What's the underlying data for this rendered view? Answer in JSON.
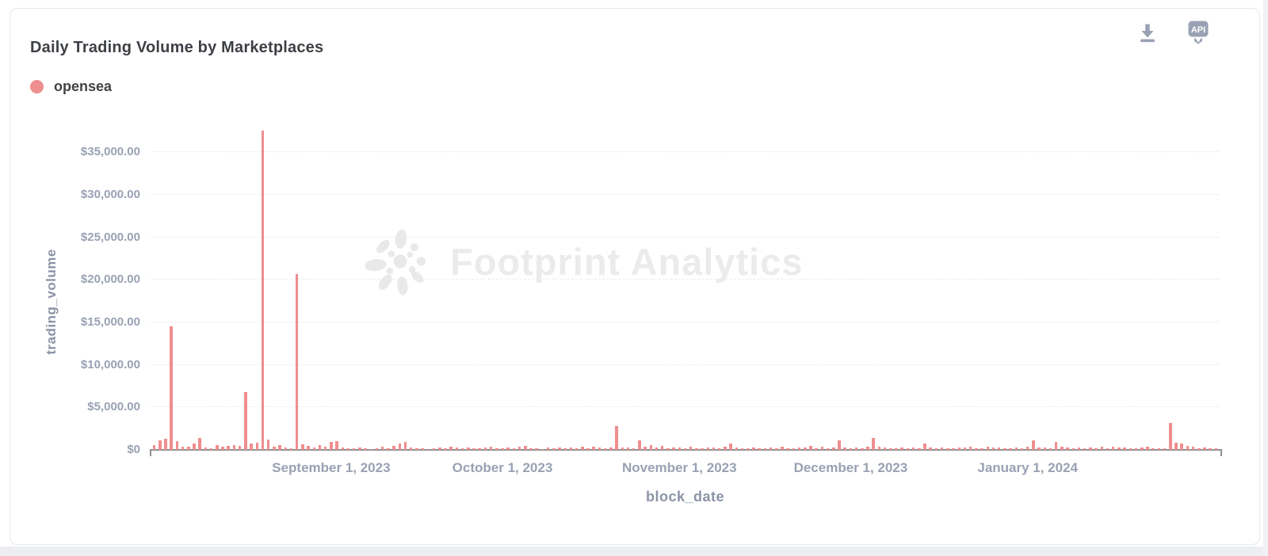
{
  "header": {
    "title": "Daily Trading Volume by Marketplaces"
  },
  "toolbar": {
    "download_icon": "download-chart",
    "api_icon_label": "API"
  },
  "legend": {
    "items": [
      {
        "label": "opensea",
        "color": "#ef8e8e"
      }
    ]
  },
  "watermark": {
    "text": "Footprint Analytics"
  },
  "chart_data": {
    "type": "bar",
    "title": "Daily Trading Volume by Marketplaces",
    "series_name": "opensea",
    "xlabel": "block_date",
    "ylabel": "trading_volume",
    "x_unit": "day",
    "x_start_date": "2023-08-01",
    "bar_color": "#ef8e8e",
    "grid": "dashed-horizontal",
    "legend_position": "top-left",
    "ylim": [
      0,
      38800
    ],
    "yticks": {
      "values": [
        0,
        5000,
        10000,
        15000,
        20000,
        25000,
        30000,
        35000
      ],
      "labels": [
        "$0",
        "$5,000.00",
        "$10,000.00",
        "$15,000.00",
        "$20,000.00",
        "$25,000.00",
        "$30,000.00",
        "$35,000.00"
      ]
    },
    "xticks": [
      {
        "day_index": 31,
        "label": "September 1, 2023"
      },
      {
        "day_index": 61,
        "label": "October 1, 2023"
      },
      {
        "day_index": 92,
        "label": "November 1, 2023"
      },
      {
        "day_index": 122,
        "label": "December 1, 2023"
      },
      {
        "day_index": 153,
        "label": "January 1, 2024"
      }
    ],
    "notable_points": [
      {
        "date": "2023-08-04",
        "value": 14500
      },
      {
        "date": "2023-08-17",
        "value": 6800
      },
      {
        "date": "2023-08-20",
        "value": 37500
      },
      {
        "date": "2023-08-26",
        "value": 20700
      },
      {
        "date": "2023-10-21",
        "value": 2800
      },
      {
        "date": "2024-01-26",
        "value": 3200
      }
    ],
    "values": [
      600,
      1100,
      1300,
      14500,
      1050,
      350,
      400,
      750,
      1400,
      300,
      150,
      600,
      350,
      450,
      600,
      500,
      6800,
      700,
      800,
      37500,
      1200,
      400,
      550,
      250,
      200,
      20700,
      650,
      450,
      250,
      600,
      400,
      900,
      1000,
      300,
      200,
      150,
      250,
      180,
      120,
      200,
      350,
      150,
      500,
      700,
      900,
      250,
      150,
      200,
      120,
      180,
      250,
      150,
      400,
      250,
      180,
      300,
      200,
      150,
      250,
      350,
      200,
      150,
      250,
      180,
      350,
      500,
      200,
      150,
      120,
      250,
      180,
      300,
      200,
      250,
      150,
      350,
      200,
      400,
      250,
      180,
      300,
      2800,
      250,
      300,
      200,
      1100,
      350,
      600,
      250,
      500,
      200,
      300,
      250,
      180,
      350,
      150,
      200,
      300,
      250,
      150,
      400,
      700,
      250,
      180,
      150,
      300,
      200,
      150,
      250,
      180,
      400,
      200,
      150,
      300,
      250,
      500,
      200,
      350,
      150,
      250,
      1100,
      300,
      200,
      250,
      180,
      350,
      1400,
      400,
      250,
      150,
      200,
      300,
      180,
      250,
      150,
      700,
      300,
      200,
      250,
      150,
      180,
      300,
      250,
      350,
      150,
      200,
      420,
      250,
      300,
      180,
      150,
      250,
      200,
      350,
      1100,
      300,
      250,
      200,
      900,
      350,
      250,
      150,
      300,
      200,
      250,
      180,
      350,
      150,
      420,
      250,
      300,
      200,
      150,
      250,
      350,
      180,
      200,
      150,
      3200,
      800,
      700,
      500,
      350,
      150,
      250,
      200,
      150
    ]
  },
  "colors": {
    "title": "#3d4045",
    "axis_label": "#99a1b3",
    "axis_title": "#8b93a6",
    "axis_line": "#8f9093",
    "gridline": "#ececec",
    "bar": "#ef8e8e",
    "icon": "#99a2b4",
    "watermark": "#ebebeb",
    "card_border": "#e7e8ec"
  }
}
